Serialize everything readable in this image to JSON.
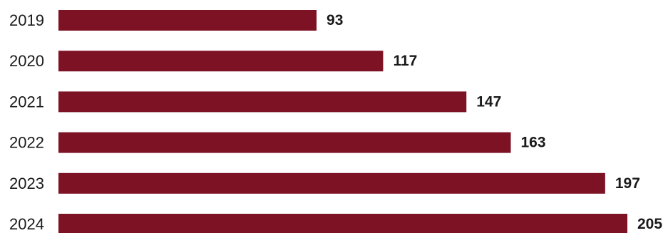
{
  "chart_data": {
    "type": "bar",
    "orientation": "horizontal",
    "categories": [
      "2019",
      "2020",
      "2021",
      "2022",
      "2023",
      "2024"
    ],
    "values": [
      93,
      117,
      147,
      163,
      197,
      205
    ],
    "data_labels": [
      "93",
      "117",
      "147",
      "163",
      "197",
      "205"
    ],
    "xlim": [
      0,
      205
    ],
    "grid": false,
    "legend": "none",
    "bar_color": "#7d1225"
  }
}
